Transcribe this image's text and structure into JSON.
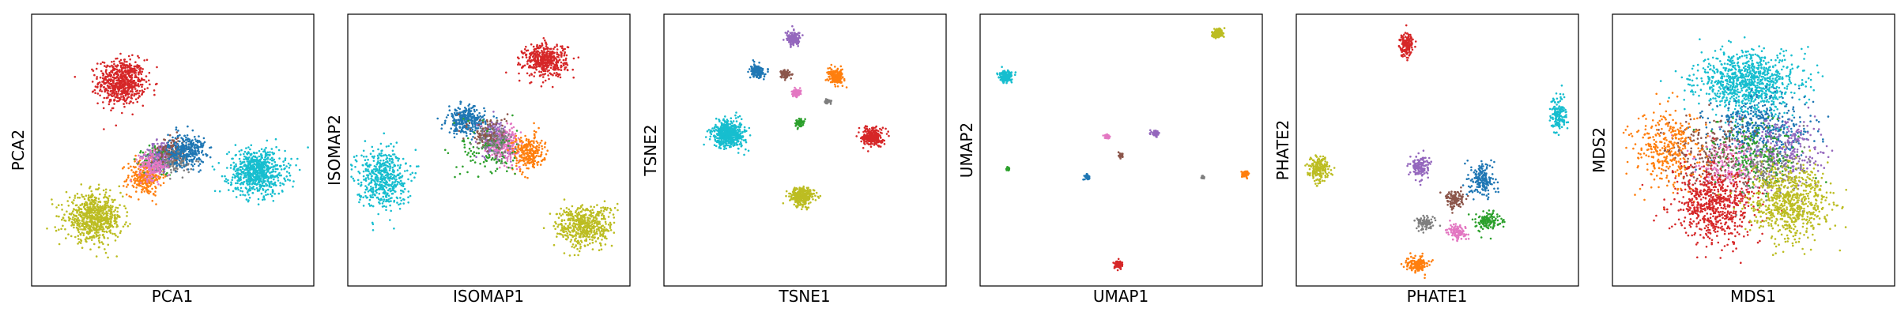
{
  "palette": {
    "blue": "#1f77b4",
    "orange": "#ff7f0e",
    "green": "#2ca02c",
    "red": "#d62728",
    "purple": "#9467bd",
    "brown": "#8c564b",
    "pink": "#e377c2",
    "gray": "#7f7f7f",
    "olive": "#bcbd22",
    "cyan": "#17becf"
  },
  "chart_data": [
    {
      "type": "scatter",
      "title": "",
      "xlabel": "PCA1",
      "ylabel": "PCA2",
      "xlim": [
        0,
        10
      ],
      "ylim": [
        0,
        10
      ],
      "ticks": "hidden",
      "grid": false,
      "legend": "none",
      "clusters": [
        {
          "color": "red",
          "center": [
            3.2,
            7.5
          ],
          "spread": [
            0.75,
            0.75
          ],
          "n": 650
        },
        {
          "color": "orange",
          "center": [
            4.0,
            4.0
          ],
          "spread": [
            0.55,
            0.6
          ],
          "n": 260
        },
        {
          "color": "green",
          "center": [
            4.5,
            4.6
          ],
          "spread": [
            0.5,
            0.5
          ],
          "n": 140
        },
        {
          "color": "purple",
          "center": [
            4.6,
            4.8
          ],
          "spread": [
            0.5,
            0.5
          ],
          "n": 180
        },
        {
          "color": "pink",
          "center": [
            4.3,
            4.4
          ],
          "spread": [
            0.45,
            0.45
          ],
          "n": 160
        },
        {
          "color": "brown",
          "center": [
            5.0,
            5.0
          ],
          "spread": [
            0.45,
            0.45
          ],
          "n": 140
        },
        {
          "color": "gray",
          "center": [
            5.2,
            4.6
          ],
          "spread": [
            0.45,
            0.45
          ],
          "n": 120
        },
        {
          "color": "blue",
          "center": [
            5.5,
            5.0
          ],
          "spread": [
            0.6,
            0.55
          ],
          "n": 280
        },
        {
          "color": "cyan",
          "center": [
            8.0,
            4.2
          ],
          "spread": [
            0.9,
            0.75
          ],
          "n": 700
        },
        {
          "color": "olive",
          "center": [
            2.2,
            2.5
          ],
          "spread": [
            0.9,
            0.75
          ],
          "n": 700
        }
      ]
    },
    {
      "type": "scatter",
      "title": "",
      "xlabel": "ISOMAP1",
      "ylabel": "ISOMAP2",
      "xlim": [
        0,
        10
      ],
      "ylim": [
        0,
        10
      ],
      "ticks": "hidden",
      "grid": false,
      "legend": "none",
      "clusters": [
        {
          "color": "red",
          "center": [
            7.0,
            8.3
          ],
          "spread": [
            0.7,
            0.55
          ],
          "n": 450
        },
        {
          "color": "blue",
          "center": [
            4.2,
            6.1
          ],
          "spread": [
            0.6,
            0.45
          ],
          "n": 280
        },
        {
          "color": "purple",
          "center": [
            5.2,
            5.4
          ],
          "spread": [
            0.45,
            0.6
          ],
          "n": 220
        },
        {
          "color": "pink",
          "center": [
            5.6,
            5.2
          ],
          "spread": [
            0.45,
            0.55
          ],
          "n": 200
        },
        {
          "color": "orange",
          "center": [
            6.4,
            4.9
          ],
          "spread": [
            0.5,
            0.6
          ],
          "n": 240
        },
        {
          "color": "green",
          "center": [
            5.0,
            5.0
          ],
          "spread": [
            0.9,
            0.9
          ],
          "n": 120
        },
        {
          "color": "brown",
          "center": [
            5.0,
            5.6
          ],
          "spread": [
            0.6,
            0.6
          ],
          "n": 100
        },
        {
          "color": "gray",
          "center": [
            5.3,
            5.3
          ],
          "spread": [
            0.6,
            0.6
          ],
          "n": 80
        },
        {
          "color": "cyan",
          "center": [
            1.2,
            4.0
          ],
          "spread": [
            0.8,
            1.0
          ],
          "n": 500
        },
        {
          "color": "olive",
          "center": [
            8.4,
            2.2
          ],
          "spread": [
            0.9,
            0.7
          ],
          "n": 500
        }
      ]
    },
    {
      "type": "scatter",
      "title": "",
      "xlabel": "TSNE1",
      "ylabel": "TSNE2",
      "xlim": [
        0,
        10
      ],
      "ylim": [
        0,
        10
      ],
      "ticks": "hidden",
      "grid": false,
      "legend": "none",
      "clusters": [
        {
          "color": "purple",
          "center": [
            4.6,
            9.1
          ],
          "spread": [
            0.22,
            0.22
          ],
          "n": 160
        },
        {
          "color": "blue",
          "center": [
            3.3,
            7.9
          ],
          "spread": [
            0.22,
            0.22
          ],
          "n": 160
        },
        {
          "color": "brown",
          "center": [
            4.3,
            7.8
          ],
          "spread": [
            0.14,
            0.14
          ],
          "n": 80
        },
        {
          "color": "orange",
          "center": [
            6.1,
            7.7
          ],
          "spread": [
            0.25,
            0.25
          ],
          "n": 180
        },
        {
          "color": "pink",
          "center": [
            4.7,
            7.1
          ],
          "spread": [
            0.14,
            0.12
          ],
          "n": 80
        },
        {
          "color": "gray",
          "center": [
            5.8,
            6.8
          ],
          "spread": [
            0.1,
            0.1
          ],
          "n": 40
        },
        {
          "color": "green",
          "center": [
            4.8,
            6.0
          ],
          "spread": [
            0.13,
            0.13
          ],
          "n": 70
        },
        {
          "color": "red",
          "center": [
            7.4,
            5.5
          ],
          "spread": [
            0.32,
            0.3
          ],
          "n": 260
        },
        {
          "color": "cyan",
          "center": [
            2.3,
            5.6
          ],
          "spread": [
            0.52,
            0.45
          ],
          "n": 520
        },
        {
          "color": "olive",
          "center": [
            4.9,
            3.3
          ],
          "spread": [
            0.38,
            0.3
          ],
          "n": 320
        }
      ]
    },
    {
      "type": "scatter",
      "title": "",
      "xlabel": "UMAP1",
      "ylabel": "UMAP2",
      "xlim": [
        0,
        10
      ],
      "ylim": [
        0,
        10
      ],
      "ticks": "hidden",
      "grid": false,
      "legend": "none",
      "clusters": [
        {
          "color": "olive",
          "center": [
            8.4,
            9.3
          ],
          "spread": [
            0.17,
            0.14
          ],
          "n": 160
        },
        {
          "color": "cyan",
          "center": [
            0.9,
            7.7
          ],
          "spread": [
            0.2,
            0.17
          ],
          "n": 200
        },
        {
          "color": "purple",
          "center": [
            6.2,
            5.6
          ],
          "spread": [
            0.12,
            0.1
          ],
          "n": 70
        },
        {
          "color": "pink",
          "center": [
            4.5,
            5.5
          ],
          "spread": [
            0.08,
            0.07
          ],
          "n": 40
        },
        {
          "color": "brown",
          "center": [
            5.0,
            4.8
          ],
          "spread": [
            0.08,
            0.07
          ],
          "n": 40
        },
        {
          "color": "green",
          "center": [
            1.0,
            4.3
          ],
          "spread": [
            0.06,
            0.05
          ],
          "n": 30
        },
        {
          "color": "blue",
          "center": [
            3.8,
            4.0
          ],
          "spread": [
            0.09,
            0.08
          ],
          "n": 45
        },
        {
          "color": "gray",
          "center": [
            7.9,
            4.0
          ],
          "spread": [
            0.06,
            0.05
          ],
          "n": 25
        },
        {
          "color": "orange",
          "center": [
            9.4,
            4.1
          ],
          "spread": [
            0.11,
            0.11
          ],
          "n": 60
        },
        {
          "color": "red",
          "center": [
            4.9,
            0.8
          ],
          "spread": [
            0.13,
            0.13
          ],
          "n": 80
        }
      ]
    },
    {
      "type": "scatter",
      "title": "",
      "xlabel": "PHATE1",
      "ylabel": "PHATE2",
      "xlim": [
        0,
        10
      ],
      "ylim": [
        0,
        10
      ],
      "ticks": "hidden",
      "grid": false,
      "legend": "none",
      "clusters": [
        {
          "color": "red",
          "center": [
            3.9,
            8.9
          ],
          "spread": [
            0.22,
            0.4
          ],
          "n": 160
        },
        {
          "color": "cyan",
          "center": [
            9.3,
            6.3
          ],
          "spread": [
            0.25,
            0.6
          ],
          "n": 150
        },
        {
          "color": "olive",
          "center": [
            0.8,
            4.3
          ],
          "spread": [
            0.35,
            0.4
          ],
          "n": 200
        },
        {
          "color": "purple",
          "center": [
            4.4,
            4.4
          ],
          "spread": [
            0.3,
            0.4
          ],
          "n": 140
        },
        {
          "color": "blue",
          "center": [
            6.6,
            3.9
          ],
          "spread": [
            0.4,
            0.55
          ],
          "n": 180
        },
        {
          "color": "brown",
          "center": [
            5.6,
            3.2
          ],
          "spread": [
            0.3,
            0.3
          ],
          "n": 120
        },
        {
          "color": "gray",
          "center": [
            4.6,
            2.3
          ],
          "spread": [
            0.3,
            0.22
          ],
          "n": 90
        },
        {
          "color": "pink",
          "center": [
            5.7,
            2.0
          ],
          "spread": [
            0.3,
            0.25
          ],
          "n": 100
        },
        {
          "color": "green",
          "center": [
            6.8,
            2.4
          ],
          "spread": [
            0.4,
            0.3
          ],
          "n": 130
        },
        {
          "color": "orange",
          "center": [
            4.3,
            0.8
          ],
          "spread": [
            0.35,
            0.25
          ],
          "n": 150
        }
      ]
    },
    {
      "type": "scatter",
      "title": "",
      "xlabel": "MDS1",
      "ylabel": "MDS2",
      "xlim": [
        0,
        10
      ],
      "ylim": [
        0,
        10
      ],
      "ticks": "hidden",
      "grid": false,
      "legend": "none",
      "clusters": [
        {
          "color": "cyan",
          "center": [
            4.8,
            7.5
          ],
          "spread": [
            1.6,
            1.0
          ],
          "n": 900
        },
        {
          "color": "blue",
          "center": [
            5.2,
            5.8
          ],
          "spread": [
            1.6,
            1.0
          ],
          "n": 400
        },
        {
          "color": "brown",
          "center": [
            3.5,
            5.0
          ],
          "spread": [
            1.3,
            1.1
          ],
          "n": 250
        },
        {
          "color": "purple",
          "center": [
            6.2,
            5.0
          ],
          "spread": [
            1.2,
            1.1
          ],
          "n": 250
        },
        {
          "color": "pink",
          "center": [
            4.2,
            4.4
          ],
          "spread": [
            1.1,
            1.0
          ],
          "n": 200
        },
        {
          "color": "gray",
          "center": [
            5.5,
            4.2
          ],
          "spread": [
            1.1,
            1.0
          ],
          "n": 180
        },
        {
          "color": "green",
          "center": [
            5.0,
            4.8
          ],
          "spread": [
            1.5,
            1.2
          ],
          "n": 200
        },
        {
          "color": "orange",
          "center": [
            2.0,
            5.0
          ],
          "spread": [
            1.1,
            1.3
          ],
          "n": 350
        },
        {
          "color": "red",
          "center": [
            3.6,
            3.0
          ],
          "spread": [
            1.3,
            1.3
          ],
          "n": 650
        },
        {
          "color": "olive",
          "center": [
            6.3,
            3.1
          ],
          "spread": [
            1.3,
            1.2
          ],
          "n": 700
        }
      ]
    }
  ]
}
